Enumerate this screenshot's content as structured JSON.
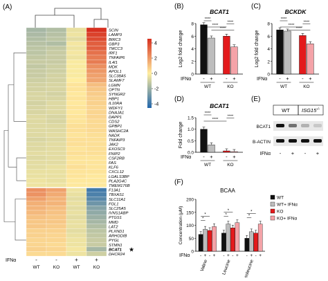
{
  "panels": {
    "A": "(A)",
    "B": "(B)",
    "C": "(C)",
    "D": "(D)",
    "E": "(E)",
    "F": "(F)"
  },
  "heatmap": {
    "genes": [
      "SCIN",
      "LAMP3",
      "BIRC3",
      "GBP3",
      "TMCC3",
      "IRF1",
      "TNFAIP6",
      "IL4I1",
      "MDK",
      "APOL1",
      "SLC38A5",
      "SLAMF7",
      "LGMN",
      "OPTN",
      "SYNGR2",
      "HBP1",
      "IL10RA",
      "WDFY1",
      "DNAJA1",
      "DAPP1",
      "CDS2",
      "GPBP1",
      "WASHC2A",
      "NADK",
      "TNFAIP3",
      "JAK2",
      "EXOSC9",
      "FNIP2",
      "CSF2RB",
      "FAS",
      "KLF6",
      "CXCL12",
      "LGALS3BP",
      "PLA2G4C",
      "TMEM176B",
      "F13A1",
      "TBXAS1",
      "SLC11A1",
      "FGL1",
      "SLC25A5",
      "IVNS1ABP",
      "PTGS1",
      "MMD",
      "LAT2",
      "PLXND1",
      "ARHGDIB",
      "PYGL",
      "STMN1",
      "BCAT1",
      "DHCR24"
    ],
    "highlight_gene": "BCAT1",
    "highlight_mark": "★",
    "ifn_label": "IFNα",
    "column_signs": [
      "-",
      "-",
      "+",
      "+"
    ],
    "groups": [
      "WT",
      "KO",
      "WT",
      "KO"
    ],
    "colorbar_ticks": [
      "4",
      "2",
      "0",
      "-2",
      "-4"
    ],
    "colors": {
      "high": "#d7301f",
      "mid": "#ffeda0",
      "low": "#2166ac"
    },
    "values": [
      [
        -1.6,
        -1.4,
        -0.4,
        4.0
      ],
      [
        -1.5,
        -1.3,
        -0.3,
        3.6
      ],
      [
        -1.4,
        -1.2,
        -0.5,
        3.4
      ],
      [
        -1.3,
        -1.4,
        -0.2,
        3.0
      ],
      [
        -1.2,
        -1.1,
        -0.3,
        3.0
      ],
      [
        -1.2,
        -1.0,
        -0.2,
        2.6
      ],
      [
        -1.1,
        -1.0,
        -0.3,
        2.4
      ],
      [
        -1.0,
        -1.0,
        -0.1,
        2.4
      ],
      [
        -1.1,
        -0.9,
        -0.1,
        2.0
      ],
      [
        -1.0,
        -0.9,
        -0.1,
        1.8
      ],
      [
        -1.0,
        -0.8,
        -0.1,
        1.6
      ],
      [
        -0.9,
        -0.8,
        0.0,
        1.5
      ],
      [
        -0.8,
        -0.7,
        0.2,
        1.0
      ],
      [
        -0.8,
        -0.7,
        0.2,
        0.8
      ],
      [
        -0.7,
        -0.8,
        0.1,
        0.7
      ],
      [
        -0.7,
        -0.7,
        0.2,
        0.6
      ],
      [
        -0.8,
        -0.6,
        0.1,
        0.6
      ],
      [
        -0.7,
        -0.6,
        0.2,
        0.5
      ],
      [
        -0.7,
        -0.6,
        0.1,
        0.5
      ],
      [
        -0.6,
        -0.7,
        0.2,
        0.5
      ],
      [
        -0.6,
        -0.7,
        0.2,
        0.4
      ],
      [
        -0.6,
        -0.6,
        0.3,
        0.4
      ],
      [
        -0.6,
        -0.6,
        0.3,
        0.4
      ],
      [
        -0.6,
        -0.5,
        0.2,
        0.3
      ],
      [
        -0.7,
        -0.6,
        0.3,
        0.3
      ],
      [
        -0.6,
        -0.5,
        0.3,
        0.3
      ],
      [
        -0.6,
        -0.5,
        0.2,
        0.3
      ],
      [
        -0.5,
        -0.5,
        0.3,
        0.3
      ],
      [
        -0.6,
        -0.5,
        0.2,
        0.2
      ],
      [
        -0.5,
        -0.5,
        0.2,
        0.2
      ],
      [
        -0.5,
        -0.4,
        0.3,
        0.2
      ],
      [
        -0.4,
        -0.4,
        0.2,
        0.2
      ],
      [
        -0.4,
        -0.4,
        0.2,
        0.1
      ],
      [
        -0.3,
        -0.4,
        0.1,
        0.1
      ],
      [
        -0.3,
        -0.3,
        0.1,
        0.1
      ],
      [
        2.0,
        1.6,
        -0.3,
        -3.4
      ],
      [
        1.9,
        1.4,
        -0.4,
        -3.2
      ],
      [
        1.6,
        1.2,
        -0.5,
        -3.0
      ],
      [
        1.3,
        1.2,
        -0.4,
        -2.6
      ],
      [
        1.2,
        1.0,
        -0.5,
        -2.2
      ],
      [
        1.1,
        0.9,
        -0.4,
        -2.0
      ],
      [
        0.9,
        0.8,
        -0.5,
        -1.8
      ],
      [
        0.8,
        0.8,
        -0.4,
        -1.6
      ],
      [
        0.8,
        0.7,
        -0.4,
        -1.4
      ],
      [
        0.6,
        0.6,
        -0.5,
        -1.2
      ],
      [
        0.6,
        0.5,
        -0.4,
        -1.1
      ],
      [
        0.5,
        0.5,
        -0.3,
        -1.0
      ],
      [
        0.5,
        0.4,
        -0.3,
        -1.0
      ],
      [
        0.6,
        0.5,
        -0.2,
        -1.6
      ],
      [
        0.4,
        0.4,
        -0.3,
        -0.9
      ]
    ]
  },
  "chart_data": [
    {
      "type": "bar",
      "panel": "B",
      "title": "BCAT1",
      "ylabel": "Log2 fold change",
      "ylim": [
        0,
        8
      ],
      "yticks": [
        "0",
        "2",
        "4",
        "6",
        "8"
      ],
      "ifn_label": "IFNα",
      "categories": [
        "WT -",
        "WT +",
        "KO -",
        "KO +"
      ],
      "signs": [
        "-",
        "+",
        "-",
        "+"
      ],
      "groups": [
        "WT",
        "KO"
      ],
      "values": [
        7.8,
        5.7,
        6.0,
        4.3
      ],
      "colors": [
        "#111111",
        "#bdbdbd",
        "#e31a1c",
        "#f4a3a8"
      ],
      "significance": [
        "****",
        "****",
        "****",
        "****"
      ]
    },
    {
      "type": "bar",
      "panel": "C",
      "title": "BCKDK",
      "ylabel": "Log2 fold change",
      "ylim": [
        0,
        8
      ],
      "yticks": [
        "0",
        "2",
        "4",
        "6",
        "8"
      ],
      "ifn_label": "IFNα",
      "categories": [
        "WT -",
        "WT +",
        "KO -",
        "KO +"
      ],
      "signs": [
        "-",
        "+",
        "-",
        "+"
      ],
      "groups": [
        "WT",
        "KO"
      ],
      "values": [
        7.0,
        6.8,
        6.1,
        4.8
      ],
      "colors": [
        "#111111",
        "#bdbdbd",
        "#e31a1c",
        "#f4a3a8"
      ],
      "significance": [
        "****",
        "****",
        "****",
        "****"
      ]
    },
    {
      "type": "bar",
      "panel": "D",
      "title": "BCAT1",
      "ylabel": "Fold change",
      "ylim": [
        0,
        1.5
      ],
      "yticks": [
        "0.0",
        "0.5",
        "1.0",
        "1.5"
      ],
      "ifn_label": "IFNα",
      "categories": [
        "WT -",
        "WT +",
        "KO -",
        "KO +"
      ],
      "signs": [
        "-",
        "+",
        "-",
        "+"
      ],
      "groups": [
        "WT",
        "KO"
      ],
      "values": [
        1.0,
        0.32,
        0.06,
        0.03
      ],
      "colors": [
        "#111111",
        "#bdbdbd",
        "#e31a1c",
        "#f4a3a8"
      ],
      "significance": [
        "****",
        "****",
        "****"
      ]
    },
    {
      "type": "bar",
      "panel": "F",
      "title": "BCAA",
      "ylabel": "Concentration (μM)",
      "ylim": [
        0,
        200
      ],
      "yticks": [
        "0",
        "50",
        "100",
        "150",
        "200"
      ],
      "ifn_label": "IFNα",
      "categories": [
        "Valine",
        "Leucine",
        "Isoleucine"
      ],
      "signs": [
        "-",
        "+",
        "-",
        "+"
      ],
      "series": [
        {
          "name": "WT",
          "values": [
            65,
            70,
            50
          ]
        },
        {
          "name": "WT+ IFNα",
          "values": [
            85,
            105,
            75
          ]
        },
        {
          "name": "KO",
          "values": [
            80,
            90,
            70
          ]
        },
        {
          "name": "KO+ IFNα",
          "values": [
            95,
            110,
            105
          ]
        }
      ],
      "colors": [
        "#111111",
        "#bdbdbd",
        "#e31a1c",
        "#f4a3a8"
      ],
      "significance": [
        "*"
      ]
    }
  ],
  "western": {
    "title": "(E)",
    "group_wt": "WT",
    "group_ko": "ISG15",
    "group_ko_sup": "-/-",
    "rows": [
      "BCAT1",
      "B-ACTIN"
    ],
    "ifn_label": "IFNα",
    "signs": [
      "-",
      "+",
      "-",
      "+"
    ],
    "bcat1_intensity": [
      1.0,
      0.55,
      0.25,
      0.15
    ],
    "actin_intensity": [
      1.0,
      1.0,
      1.0,
      1.0
    ]
  }
}
